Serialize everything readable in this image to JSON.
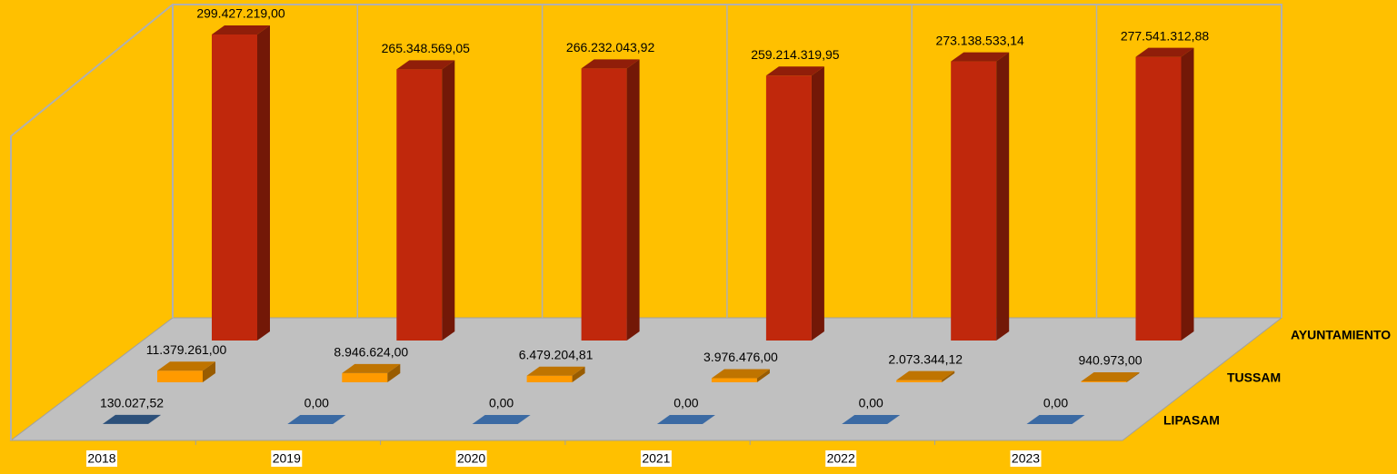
{
  "chart_data": {
    "type": "bar3d",
    "categories": [
      "2018",
      "2019",
      "2020",
      "2021",
      "2022",
      "2023"
    ],
    "series": [
      {
        "name": "LIPASAM",
        "color": "#3b6aa3",
        "values": [
          130027.52,
          0,
          0,
          0,
          0,
          0
        ],
        "value_labels": [
          "130.027,52",
          "0,00",
          "0,00",
          "0,00",
          "0,00",
          "0,00"
        ]
      },
      {
        "name": "TUSSAM",
        "color": "#ff9a00",
        "values": [
          11379261,
          8946624,
          6479204.81,
          3976476,
          2073344.12,
          940973
        ],
        "value_labels": [
          "11.379.261,00",
          "8.946.624,00",
          "6.479.204,81",
          "3.976.476,00",
          "2.073.344,12",
          "940.973,00"
        ]
      },
      {
        "name": "AYUNTAMIENTO",
        "color": "#c0280c",
        "values": [
          299427219.0,
          265348569.05,
          266232043.92,
          259214319.95,
          273138533.14,
          277541312.88
        ],
        "value_labels": [
          "299.427.219,00",
          "265.348.569,05",
          "266.232.043,92",
          "259.214.319,95",
          "273.138.533,14",
          "277.541.312,88"
        ]
      }
    ]
  }
}
